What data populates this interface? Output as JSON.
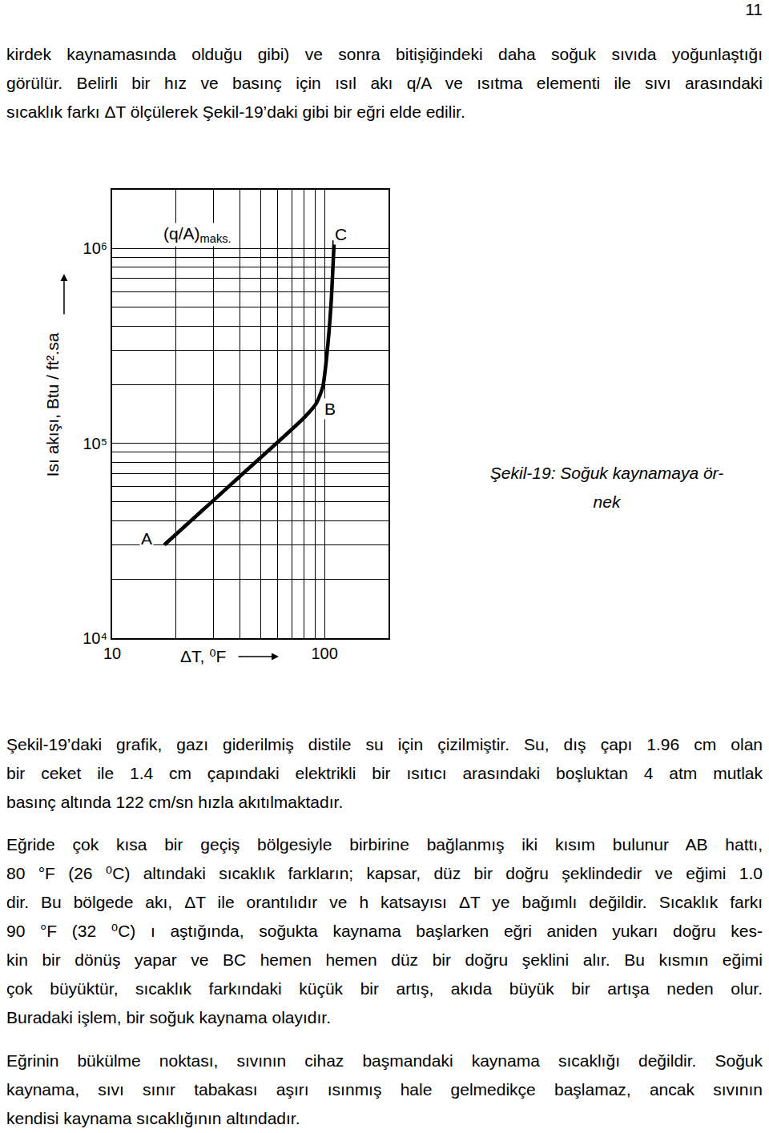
{
  "page_number": "11",
  "paragraphs_before": [
    [
      "kirdek kaynamasında olduğu gibi) ve sonra bitişiğindeki daha soğuk sıvıda yoğunlaştığı",
      "görülür. Belirli bir hız ve basınç için ısıl akı q/A ve ısıtma elementi ile sıvı arasındaki",
      "sıcaklık farkı ΔT ölçülerek Şekil-19’daki gibi bir eğri elde edilir."
    ]
  ],
  "chart_data": {
    "type": "line",
    "x": [
      17.6,
      40.2,
      80.5,
      91.6,
      98.2,
      102.6,
      107.2,
      111
    ],
    "values": [
      30100,
      68100,
      136000,
      161000,
      196000,
      287000,
      511000,
      1100000
    ],
    "color": "#000000",
    "xlim": [
      10,
      200
    ],
    "ylim": [
      10000,
      2000000
    ],
    "xticks": [
      10,
      100
    ],
    "yticks": [
      {
        "value": 10000,
        "label": "10⁴"
      },
      {
        "value": 100000,
        "label": "10⁵"
      },
      {
        "value": 1000000,
        "label": "10⁶"
      }
    ],
    "log": true,
    "grid": true,
    "xlabel": "ΔT, ⁰F",
    "ylabel": "Isı akışı, Btu / ft².sa",
    "annotations": [
      {
        "text": "(q/A)",
        "subscript": "maks.",
        "x": 25.3,
        "y": 1180000
      },
      {
        "text": "C",
        "x": 119,
        "y": 1180000
      },
      {
        "text": "B",
        "x": 106,
        "y": 150000
      },
      {
        "text": "A",
        "x": 14.5,
        "y": 32600
      }
    ]
  },
  "caption": [
    "Şekil-19: Soğuk kaynamaya ör-",
    "nek"
  ],
  "paragraphs_after": [
    [
      "Şekil-19’daki grafik, gazı giderilmiş distile su için çizilmiştir. Su, dış çapı 1.96 cm olan",
      "bir ceket ile 1.4 cm çapındaki elektrikli bir ısıtıcı arasındaki boşluktan 4 atm mutlak",
      "basınç altında 122 cm/sn hızla akıtılmaktadır."
    ],
    [
      "Eğride çok kısa bir geçiş bölgesiyle birbirine bağlanmış iki kısım bulunur AB hattı,",
      "80 °F (26 ⁰C) altındaki sıcaklık farkların; kapsar, düz bir doğru şeklindedir ve eğimi 1.0",
      "dir. Bu bölgede akı, ΔT ile orantılıdır ve h katsayısı ΔT ye bağımlı değildir. Sıcaklık farkı",
      "90 °F (32 ⁰C) ı aştığında, soğukta kaynama başlarken eğri aniden yukarı doğru kes-",
      "kin bir dönüş yapar ve BC hemen hemen düz bir doğru şeklini alır. Bu kısmın eğimi",
      "çok büyüktür, sıcaklık farkındaki küçük bir artış, akıda büyük bir artışa neden olur.",
      "Buradaki işlem, bir soğuk kaynama olayıdır."
    ],
    [
      "Eğrinin bükülme noktası, sıvının cihaz başmandaki kaynama sıcaklığı değildir. Soğuk",
      "kaynama, sıvı sınır tabakası aşırı ısınmış hale gelmedikçe başlamaz, ancak sıvının",
      "kendisi kaynama sıcaklığının  altındadır."
    ]
  ]
}
